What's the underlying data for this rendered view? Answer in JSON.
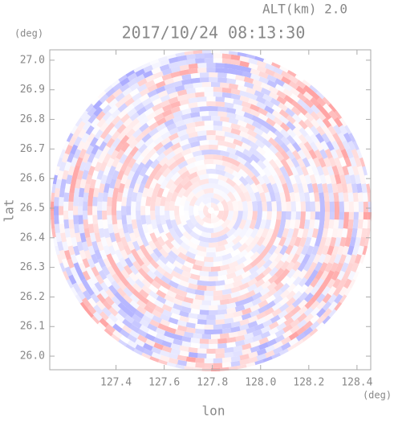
{
  "chart_data": {
    "type": "radar-ppi",
    "title": "2017/10/24 08:13:30",
    "subtitle": "ALT(km) 2.0",
    "x_label": "lon",
    "y_label": "lat",
    "x_unit": "(deg)",
    "y_unit": "(deg)",
    "xlim": [
      127.125,
      128.457
    ],
    "ylim": [
      25.954,
      27.035
    ],
    "xticks": [
      127.4,
      127.6,
      127.8,
      {
        "value": 128,
        "label": "128.0"
      },
      128.2,
      128.4
    ],
    "yticks": [
      {
        "value": 26,
        "label": "26.0"
      },
      26.1,
      26.2,
      26.3,
      26.4,
      26.5,
      26.6,
      26.7,
      26.8,
      26.9,
      {
        "value": 27,
        "label": "27.0"
      }
    ]
  }
}
